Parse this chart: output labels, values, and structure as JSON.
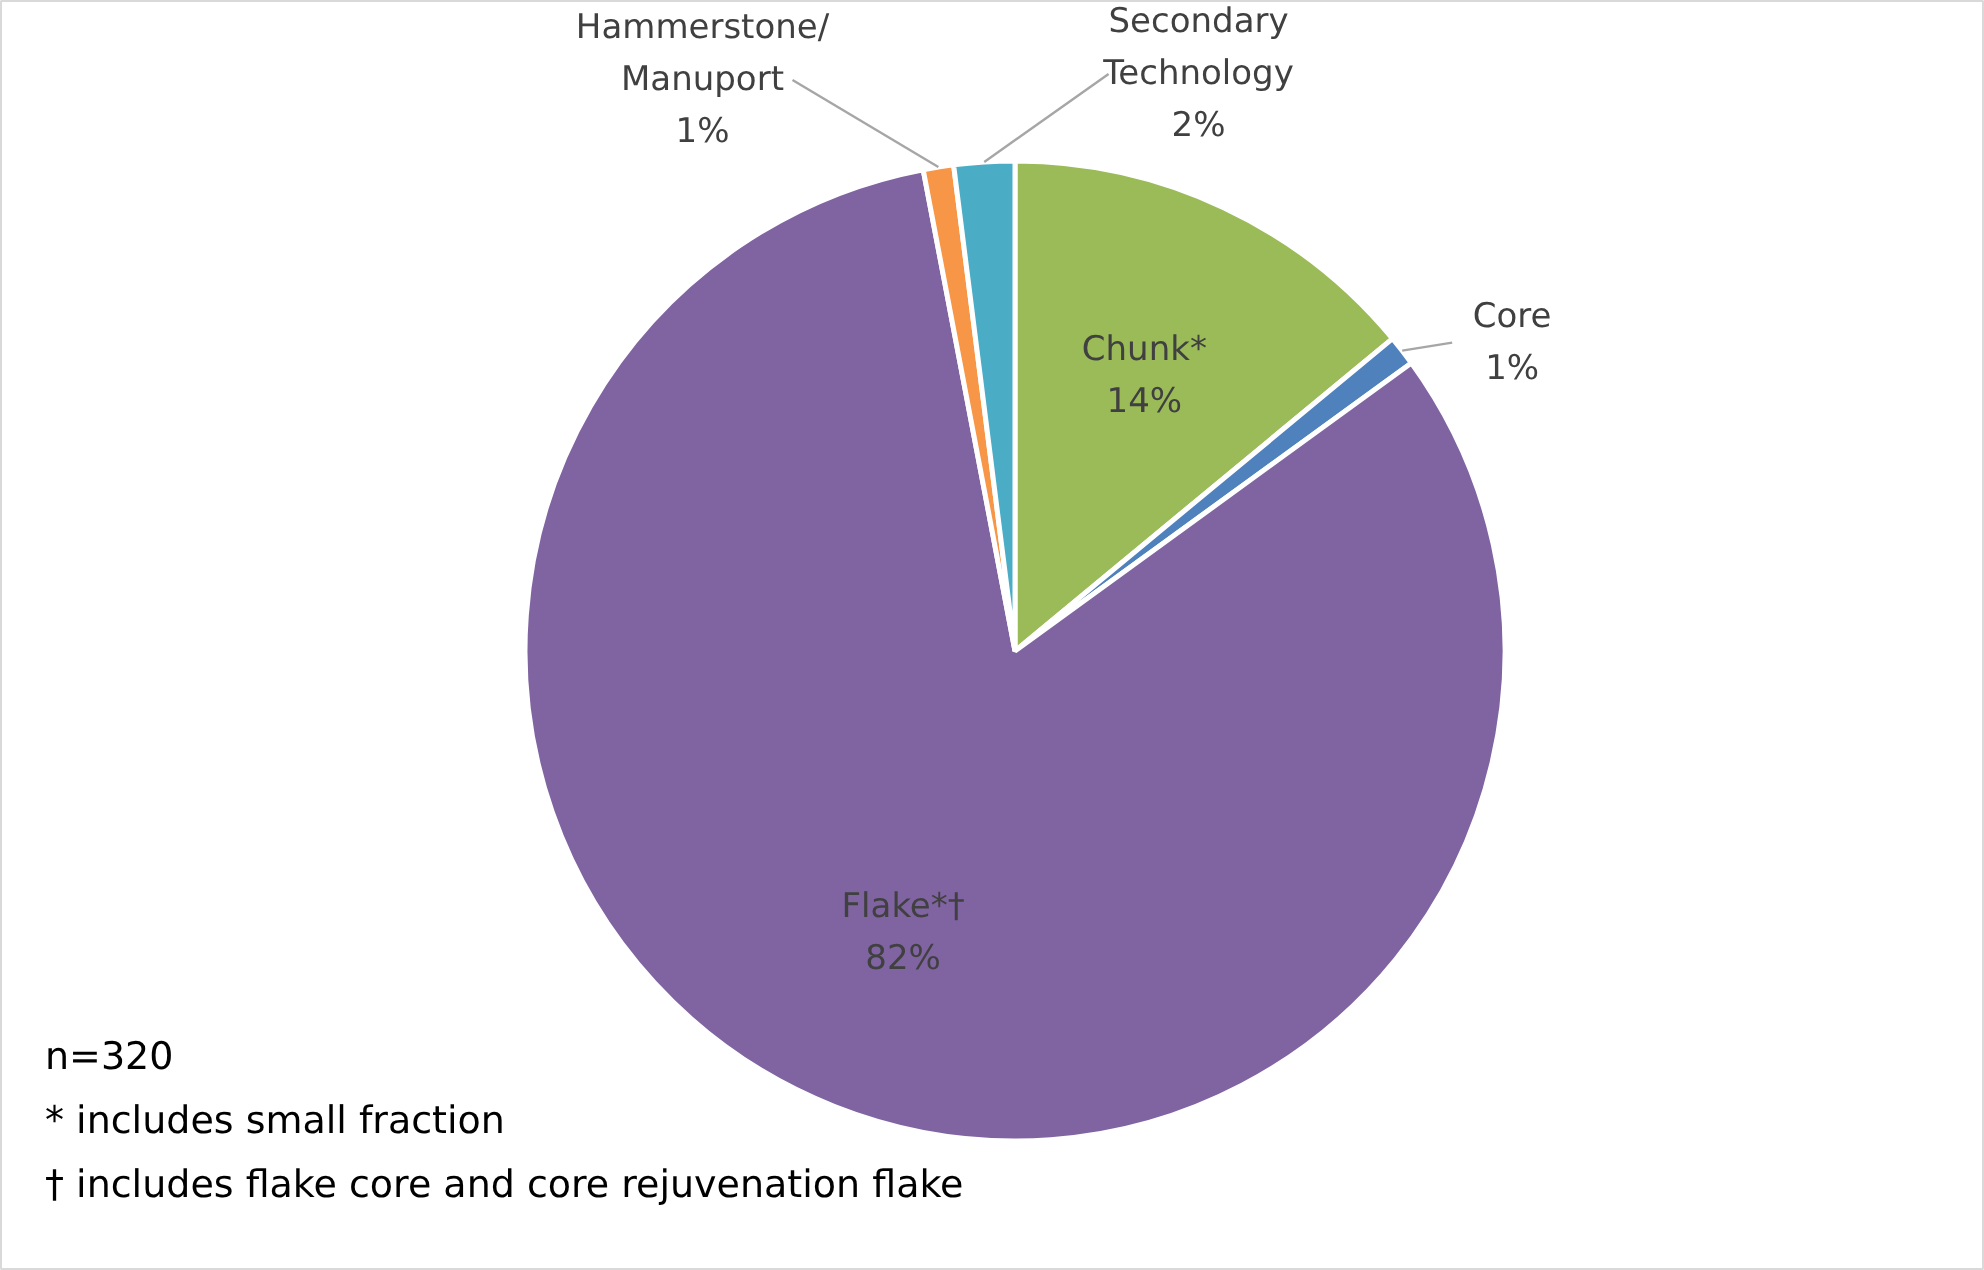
{
  "chart_data": {
    "type": "pie",
    "categories": [
      "Chunk*",
      "Core",
      "Flake*†",
      "Hammerstone/ Manuport",
      "Secondary Technology"
    ],
    "values": [
      14,
      1,
      82,
      1,
      2
    ],
    "value_labels": [
      "14%",
      "1%",
      "82%",
      "1%",
      "2%"
    ],
    "colors": [
      "#9bbb59",
      "#4f81bd",
      "#8064a2",
      "#f79646",
      "#4bacc6"
    ],
    "legend": false,
    "annotations": [
      "n=320",
      "* includes small fraction",
      "† includes flake core and core rejuvenation flake"
    ]
  }
}
